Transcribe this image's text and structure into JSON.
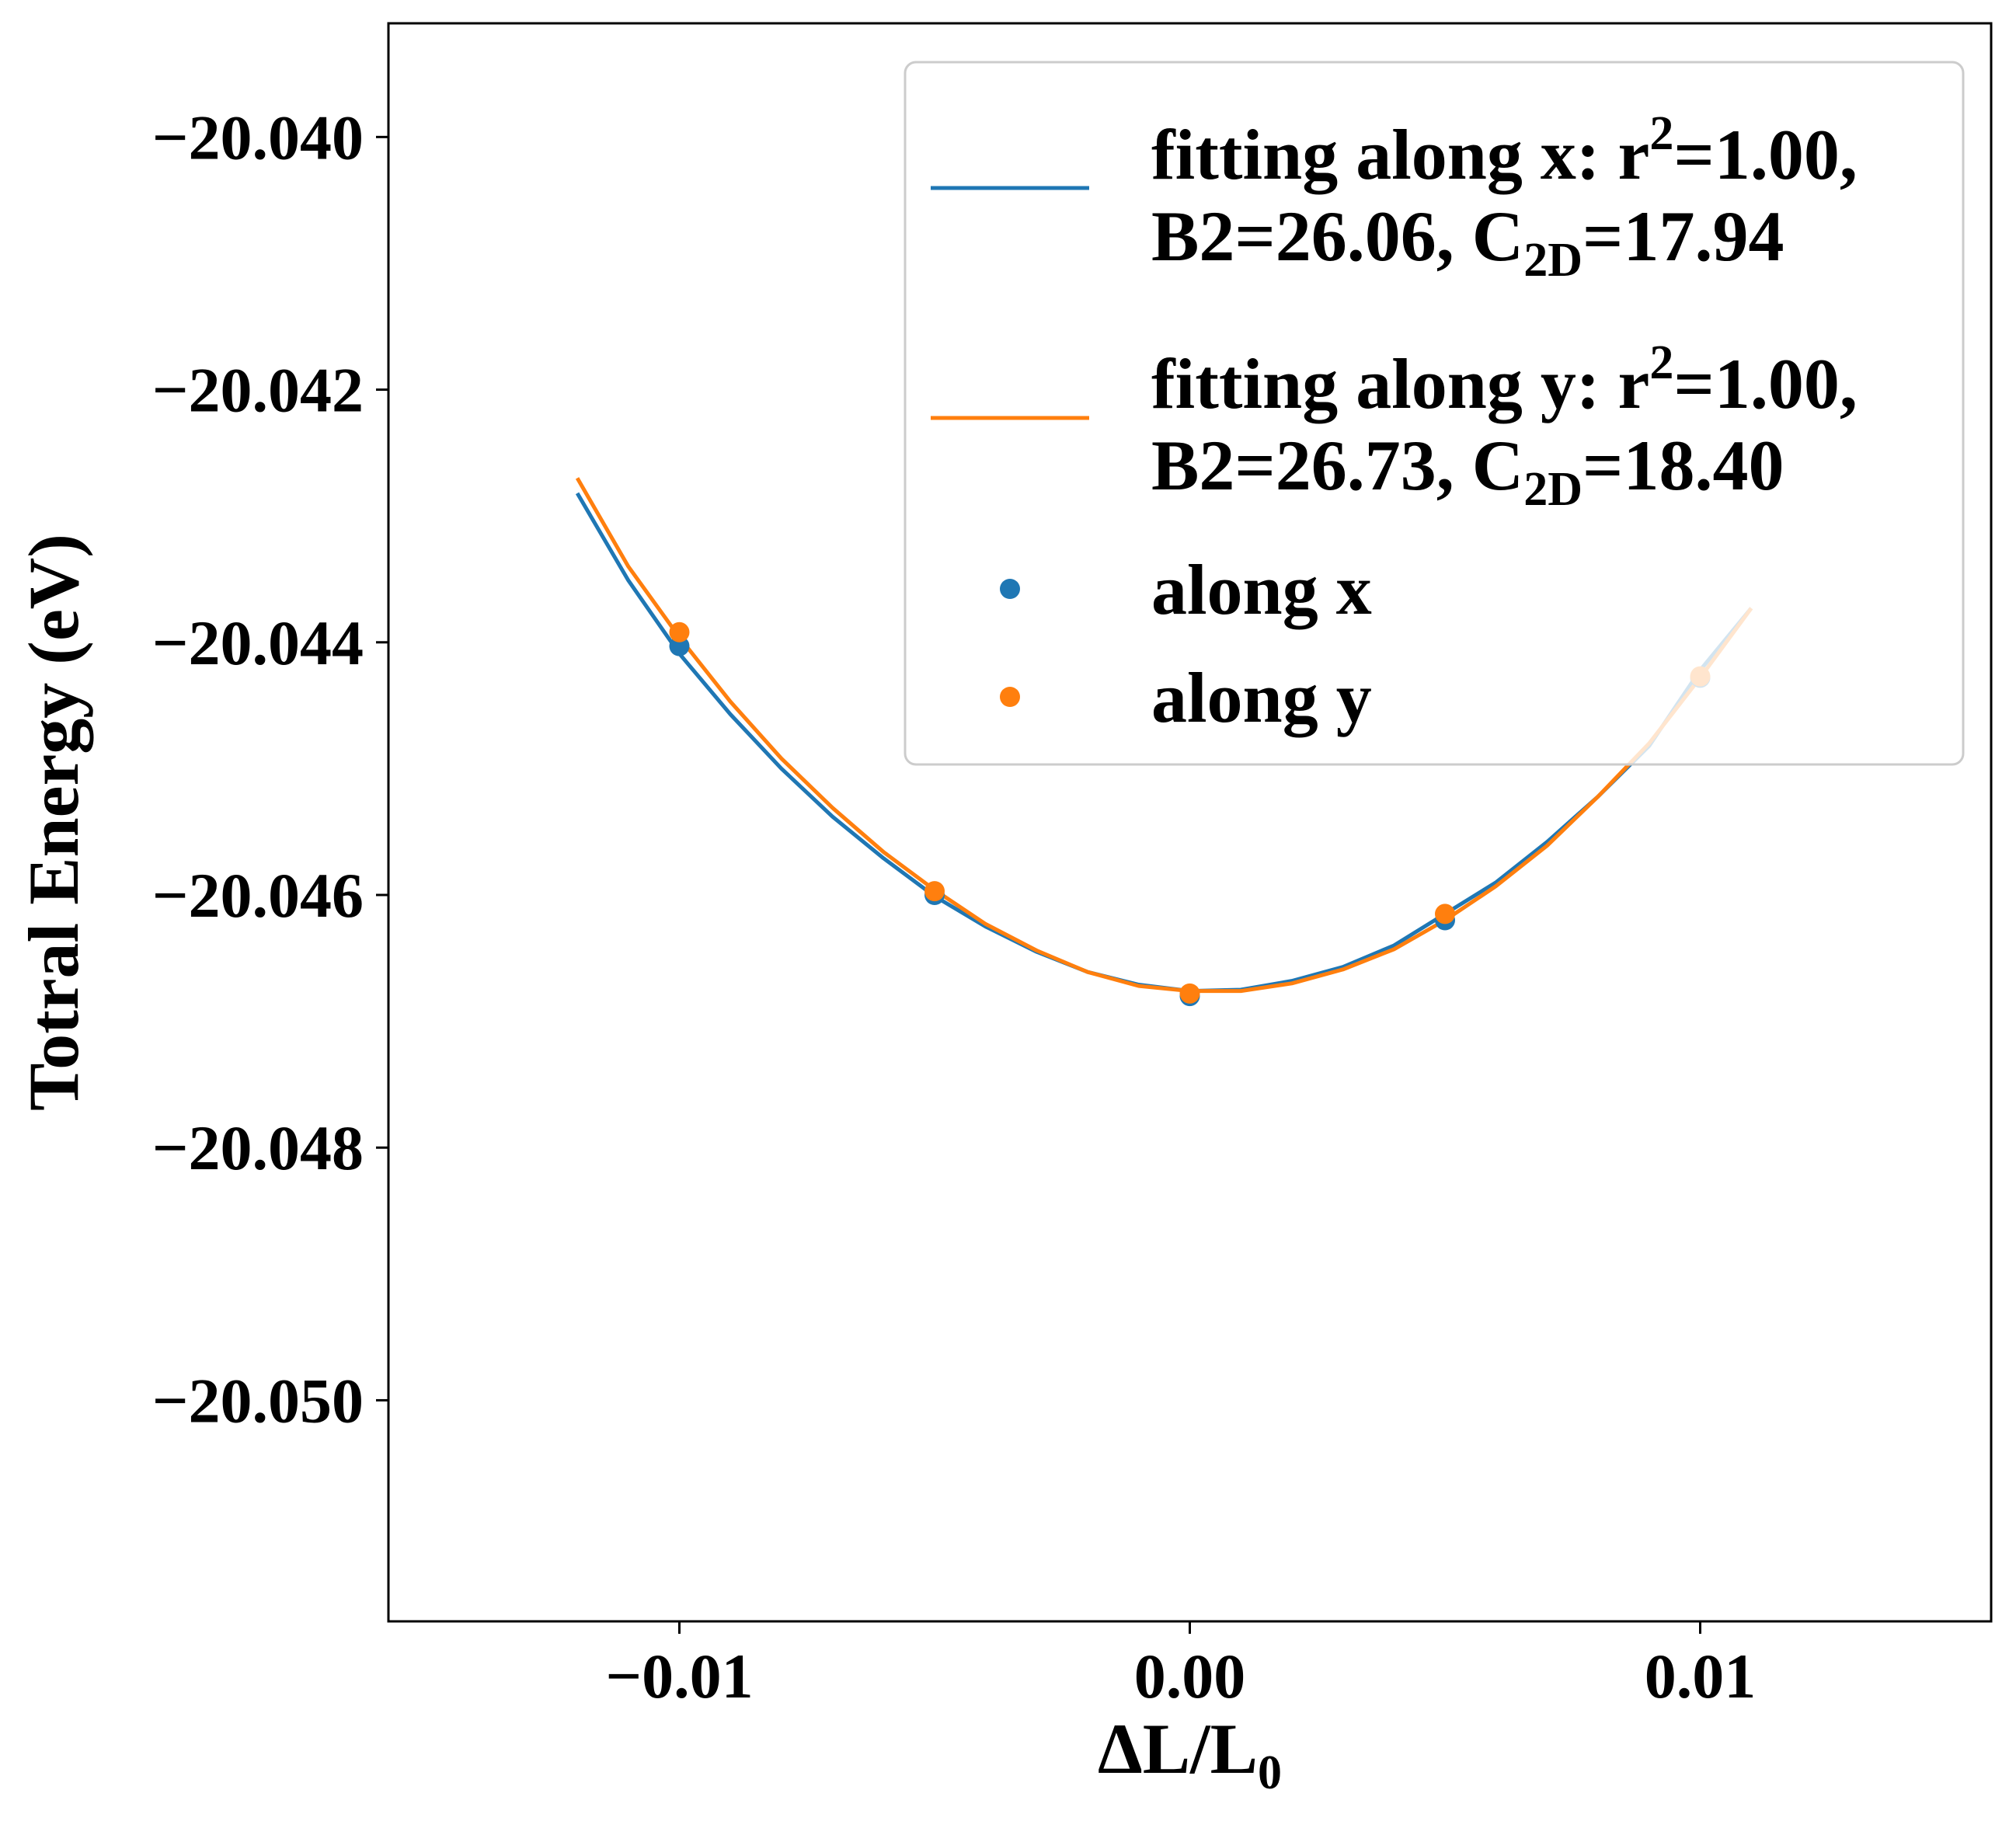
{
  "chart_data": {
    "type": "line",
    "title": "",
    "xlabel": {
      "main": "ΔL/L",
      "sub": "0"
    },
    "ylabel": "Totral Energy (eV)",
    "xlim": [
      -0.0157,
      0.0157
    ],
    "ylim": [
      -20.05175,
      -20.0391
    ],
    "xticks": [
      -0.01,
      0.0,
      0.01
    ],
    "xtick_labels": [
      "−0.01",
      "0.00",
      "0.01"
    ],
    "yticks": [
      -20.04,
      -20.042,
      -20.044,
      -20.046,
      -20.048,
      -20.05
    ],
    "ytick_labels": [
      "−20.040",
      "−20.042",
      "−20.044",
      "−20.046",
      "−20.048",
      "−20.050"
    ],
    "grid": false,
    "legend_position": "top-right",
    "colors": {
      "x": "#1f77b4",
      "y": "#ff7f0e"
    },
    "series": [
      {
        "kind": "line",
        "key": "fit_x",
        "color": "#1f77b4",
        "legend_line1": {
          "pre": "fitting along x: r",
          "sup": "2",
          "post": "=1.00,"
        },
        "legend_line2": {
          "pre": "B2=26.06, C",
          "sub": "2D",
          "post": "=17.94"
        },
        "x": [
          -0.012,
          -0.011,
          -0.01,
          -0.009,
          -0.008,
          -0.007,
          -0.006,
          -0.005,
          -0.004,
          -0.003,
          -0.002,
          -0.001,
          0.0,
          0.001,
          0.002,
          0.003,
          0.004,
          0.005,
          0.006,
          0.007,
          0.008,
          0.009,
          0.01,
          0.011
        ],
        "y": [
          -20.04282,
          -20.04351,
          -20.04409,
          -20.04457,
          -20.045,
          -20.04538,
          -20.04571,
          -20.04601,
          -20.04625,
          -20.04645,
          -20.04661,
          -20.04671,
          -20.04676,
          -20.04675,
          -20.04668,
          -20.04657,
          -20.0464,
          -20.04615,
          -20.0459,
          -20.04558,
          -20.04522,
          -20.04482,
          -20.04422,
          -20.04373
        ]
      },
      {
        "kind": "line",
        "key": "fit_y",
        "color": "#ff7f0e",
        "legend_line1": {
          "pre": "fitting along y: r",
          "sup": "2",
          "post": "=1.00,"
        },
        "legend_line2": {
          "pre": "B2=26.73, C",
          "sub": "2D",
          "post": "=18.40"
        },
        "x": [
          -0.012,
          -0.011,
          -0.01,
          -0.009,
          -0.008,
          -0.007,
          -0.006,
          -0.005,
          -0.004,
          -0.003,
          -0.002,
          -0.001,
          0.0,
          0.001,
          0.002,
          0.003,
          0.004,
          0.005,
          0.006,
          0.007,
          0.008,
          0.009,
          0.01,
          0.011
        ],
        "y": [
          -20.0427,
          -20.0434,
          -20.04396,
          -20.04447,
          -20.04492,
          -20.04531,
          -20.04566,
          -20.04596,
          -20.04623,
          -20.04644,
          -20.04661,
          -20.04672,
          -20.04676,
          -20.04676,
          -20.0467,
          -20.04659,
          -20.04643,
          -20.0462,
          -20.04593,
          -20.04561,
          -20.04522,
          -20.0448,
          -20.04428,
          -20.04373
        ]
      },
      {
        "kind": "scatter",
        "key": "pts_x",
        "name": "along x",
        "color": "#1f77b4",
        "x": [
          -0.01,
          -0.005,
          0.0,
          0.005,
          0.01
        ],
        "y": [
          -20.04403,
          -20.046,
          -20.0468,
          -20.0462,
          -20.04428
        ]
      },
      {
        "kind": "scatter",
        "key": "pts_y",
        "name": "along y",
        "color": "#ff7f0e",
        "x": [
          -0.01,
          -0.005,
          0.0,
          0.005,
          0.01
        ],
        "y": [
          -20.04392,
          -20.04597,
          -20.04678,
          -20.04615,
          -20.04427
        ]
      }
    ]
  }
}
